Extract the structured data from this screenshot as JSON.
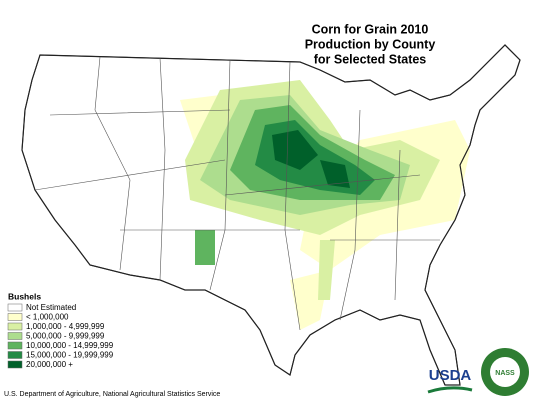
{
  "title": [
    "Corn for Grain 2010",
    "Production by County",
    "for Selected States"
  ],
  "legend": {
    "title": "Bushels",
    "items": [
      {
        "label": "Not Estimated",
        "color": "#ffffff"
      },
      {
        "label": "< 1,000,000",
        "color": "#ffffcc"
      },
      {
        "label": "1,000,000 - 4,999,999",
        "color": "#d9f0a3"
      },
      {
        "label": "5,000,000 - 9,999,999",
        "color": "#addd8e"
      },
      {
        "label": "10,000,000 - 14,999,999",
        "color": "#5fb45f"
      },
      {
        "label": "15,000,000 - 19,999,999",
        "color": "#238b45"
      },
      {
        "label": "20,000,000 +",
        "color": "#00602a"
      }
    ]
  },
  "footer": "U.S. Department of Agriculture, National Agricultural Statistics Service",
  "logos": {
    "usda": "USDA",
    "nass": "NASS"
  }
}
